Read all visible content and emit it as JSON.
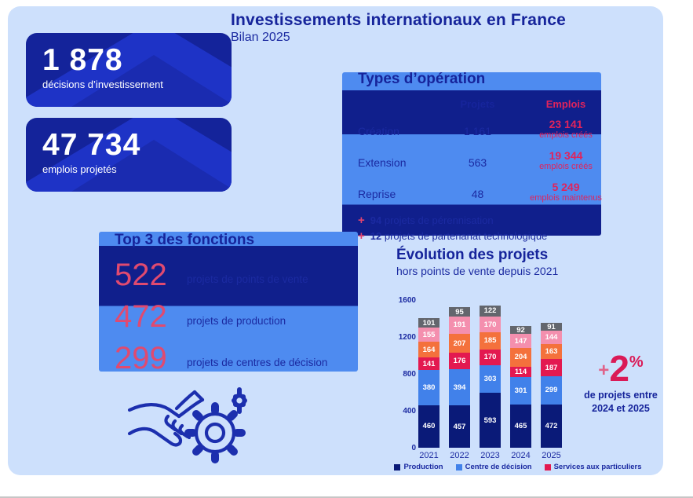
{
  "colors": {
    "canvas_bg": "#cde0fc",
    "navy_text": "#16249b",
    "crimson": "#e0235c",
    "card_bg": "#14239a",
    "accent_light": "#4e8bf0",
    "accent_dark": "#101f8c"
  },
  "header": {
    "title": "Investissements internationaux en France",
    "subtitle": "Bilan 2025"
  },
  "kpis": [
    {
      "value": "1 878",
      "label": "décisions d’investissement"
    },
    {
      "value": "47 734",
      "label": "emplois projetés"
    }
  ],
  "types_operation": {
    "title": "Types d’opération",
    "col_projets": "Projets",
    "col_emplois": "Emplois",
    "rows": [
      {
        "label": "Création",
        "projets": "1 161",
        "emplois": "23 141",
        "emplois_sub": "emplois créés"
      },
      {
        "label": "Extension",
        "projets": "563",
        "emplois": "19 344",
        "emplois_sub": "emplois créés"
      },
      {
        "label": "Reprise",
        "projets": "48",
        "emplois": "5 249",
        "emplois_sub": "emplois maintenus"
      }
    ],
    "plus_sign": "+",
    "notes": [
      {
        "value": "94",
        "text": "projets de pérennisation"
      },
      {
        "value": "12",
        "text": "projets de partenariat technologique"
      }
    ]
  },
  "top3": {
    "title": "Top 3 des fonctions",
    "items": [
      {
        "value": "522",
        "label": "projets de points de vente"
      },
      {
        "value": "472",
        "label": "projets de production"
      },
      {
        "value": "299",
        "label": "projets de centres de décision"
      }
    ]
  },
  "icons": {
    "handshake": "handshake-icon",
    "gear_large": "gear-outline-icon",
    "gear_small": "gear-filled-icon"
  },
  "chart_data": {
    "type": "bar",
    "stacked": true,
    "title": "Évolution des projets",
    "subtitle": "hors points de vente depuis 2021",
    "categories": [
      "2021",
      "2022",
      "2023",
      "2024",
      "2025"
    ],
    "series": [
      {
        "name": "Production",
        "color": "#0a1a78",
        "values": [
          460,
          457,
          593,
          465,
          472
        ]
      },
      {
        "name": "Centre de décision",
        "color": "#4181ea",
        "values": [
          380,
          394,
          303,
          301,
          299
        ]
      },
      {
        "name": "Services aux particuliers",
        "color": "#e31950",
        "values": [
          141,
          176,
          170,
          114,
          187
        ]
      },
      {
        "name": "",
        "color": "#f4713c",
        "values": [
          164,
          207,
          185,
          204,
          163
        ]
      },
      {
        "name": "",
        "color": "#f48fae",
        "values": [
          155,
          191,
          170,
          147,
          144
        ]
      },
      {
        "name": "",
        "color": "#63666d",
        "values": [
          101,
          95,
          122,
          92,
          91
        ]
      }
    ],
    "ylim": [
      0,
      1600
    ],
    "yticks": [
      0,
      400,
      800,
      1200,
      1600
    ],
    "grid": false,
    "legend_position": "bottom",
    "legend": [
      {
        "label": "Production",
        "color": "#0a1a78"
      },
      {
        "label": "Centre de décision",
        "color": "#4181ea"
      },
      {
        "label": "Services aux particuliers",
        "color": "#e31950"
      }
    ]
  },
  "annotation": {
    "plus": "+",
    "value": "2",
    "unit": "%",
    "line1": "de projets entre",
    "line2": "2024 et 2025"
  }
}
